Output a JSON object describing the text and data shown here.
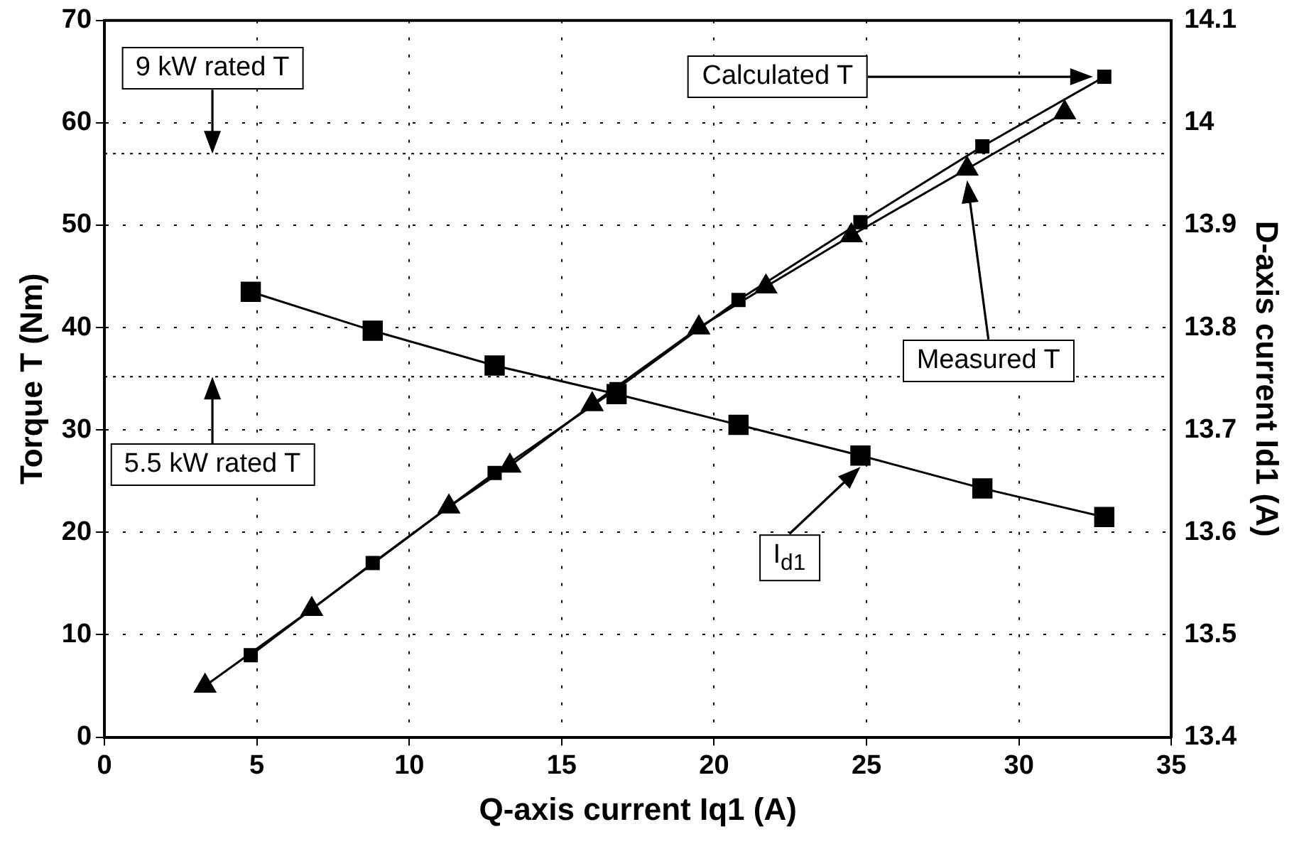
{
  "chart_data": {
    "type": "line",
    "xlabel": "Q-axis current Iq1 (A)",
    "ylabel": "Torque T (Nm)",
    "y2label": "D-axis current Id1 (A)",
    "xlim": [
      0,
      35
    ],
    "xticks": [
      0,
      5,
      10,
      15,
      20,
      25,
      30,
      35
    ],
    "ylim": [
      0,
      70
    ],
    "yticks": [
      0,
      10,
      20,
      30,
      40,
      50,
      60,
      70
    ],
    "y2lim": [
      13.4,
      14.1
    ],
    "y2ticks": [
      13.4,
      13.5,
      13.6,
      13.7,
      13.8,
      13.9,
      14,
      14.1
    ],
    "grid": true,
    "legend": false,
    "line_style": "solid",
    "series": [
      {
        "name": "Calculated T",
        "color": "#000000",
        "marker": "square",
        "x": [
          4.8,
          8.8,
          12.8,
          16.8,
          20.8,
          24.8,
          28.8,
          32.8
        ],
        "values": [
          8,
          17,
          25.8,
          34,
          42.7,
          50.3,
          57.7,
          64.5
        ]
      },
      {
        "name": "Measured T",
        "color": "#000000",
        "marker": "triangle",
        "x": [
          3.3,
          6.8,
          11.3,
          13.3,
          16,
          19.5,
          21.7,
          24.5,
          28.3,
          31.5
        ],
        "values": [
          5,
          12.5,
          22.5,
          26.5,
          32.5,
          40,
          44,
          49,
          55.5,
          61
        ]
      },
      {
        "name": "I$_{d1}$",
        "color": "#000000",
        "marker": "square",
        "axis": "y2",
        "x": [
          4.8,
          8.8,
          12.8,
          16.8,
          20.8,
          24.8,
          28.8,
          32.8
        ],
        "values": [
          13.835,
          13.797,
          13.763,
          13.735,
          13.705,
          13.675,
          13.643,
          13.615
        ]
      }
    ],
    "ref_lines": [
      {
        "axis": "y",
        "value": 57,
        "label": "9 kW rated T",
        "line_style": "dotted"
      },
      {
        "axis": "y",
        "value": 35.2,
        "label": "5.5 kW rated T",
        "line_style": "dotted"
      }
    ]
  }
}
